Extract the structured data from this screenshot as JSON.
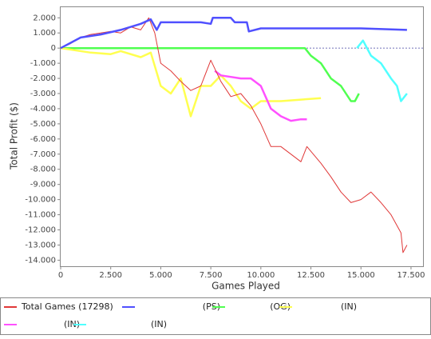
{
  "chart_data": {
    "type": "line",
    "x_label": "Games Played",
    "y_label": "Total Profit ($)",
    "xlim": [
      0,
      18100
    ],
    "ylim": [
      -14400,
      2700
    ],
    "xticks": [
      0,
      {
        "value": 2500,
        "label": "2.500"
      },
      {
        "value": 5000,
        "label": "5.000"
      },
      {
        "value": 7500,
        "label": "7.500"
      },
      {
        "value": 10000,
        "label": "10.000"
      },
      {
        "value": 12500,
        "label": "12.500"
      },
      {
        "value": 15000,
        "label": "15.000"
      },
      {
        "value": 17500,
        "label": "17.500"
      }
    ],
    "yticks": [
      {
        "value": 2000,
        "label": "2.000"
      },
      {
        "value": 1000,
        "label": "1.000"
      },
      0,
      {
        "value": -1000,
        "label": "-1.000"
      },
      {
        "value": -2000,
        "label": "-2.000"
      },
      {
        "value": -3000,
        "label": "-3.000"
      },
      {
        "value": -4000,
        "label": "-4.000"
      },
      {
        "value": -5000,
        "label": "-5.000"
      },
      {
        "value": -6000,
        "label": "-6.000"
      },
      {
        "value": -7000,
        "label": "-7.000"
      },
      {
        "value": -8000,
        "label": "-8.000"
      },
      {
        "value": -9000,
        "label": "-9.000"
      },
      {
        "value": -10000,
        "label": "-10.000"
      },
      {
        "value": -11000,
        "label": "-11.000"
      },
      {
        "value": -12000,
        "label": "-12.000"
      },
      {
        "value": -13000,
        "label": "-13.000"
      },
      {
        "value": -14000,
        "label": "-14.000"
      }
    ],
    "series": [
      {
        "name": "Total Games (17298)",
        "color": "#e03838",
        "x": [
          0,
          500,
          1000,
          1500,
          2000,
          2500,
          3000,
          3500,
          4000,
          4400,
          4700,
          5000,
          5500,
          6000,
          6500,
          7000,
          7500,
          8000,
          8500,
          9000,
          9500,
          10000,
          10500,
          11000,
          11500,
          12000,
          12300,
          13000,
          13500,
          14000,
          14500,
          15000,
          15500,
          16000,
          16500,
          17000,
          17100,
          17300
        ],
        "values": [
          0,
          300,
          700,
          900,
          1000,
          1100,
          1000,
          1400,
          1200,
          2000,
          1000,
          -1000,
          -1500,
          -2200,
          -2800,
          -2500,
          -800,
          -2200,
          -3200,
          -3000,
          -3800,
          -5000,
          -6500,
          -6500,
          -7000,
          -7500,
          -6500,
          -7600,
          -8500,
          -9500,
          -10200,
          -10000,
          -9500,
          -10200,
          -11000,
          -12200,
          -13500,
          -13000
        ]
      },
      {
        "name": "(PS)",
        "color": "#5050ff",
        "x": [
          0,
          1000,
          2000,
          3000,
          4000,
          4500,
          4800,
          5000,
          6000,
          7000,
          7500,
          7600,
          8500,
          8700,
          9300,
          9400,
          10000,
          12000,
          15000,
          17300
        ],
        "values": [
          0,
          700,
          900,
          1200,
          1600,
          1900,
          1200,
          1700,
          1700,
          1700,
          1600,
          2000,
          2000,
          1700,
          1700,
          1100,
          1300,
          1300,
          1300,
          1200
        ]
      },
      {
        "name": "(OG)",
        "color": "#50ff50",
        "x": [
          0,
          12000,
          12200,
          12500,
          13000,
          13500,
          14000,
          14500,
          14700,
          14900
        ],
        "values": [
          0,
          0,
          0,
          -500,
          -1000,
          -2000,
          -2500,
          -3500,
          -3500,
          -3000
        ]
      },
      {
        "name": "(IN)",
        "color": "#ffff50",
        "x": [
          0,
          1500,
          2500,
          3000,
          4000,
          4500,
          5000,
          5500,
          6000,
          6500,
          7000,
          7500,
          8000,
          8500,
          9000,
          9500,
          10000,
          11000,
          12000,
          13000
        ],
        "values": [
          0,
          -300,
          -400,
          -200,
          -600,
          -300,
          -2500,
          -3000,
          -2000,
          -4500,
          -2500,
          -2500,
          -1800,
          -2500,
          -3500,
          -4000,
          -3500,
          -3500,
          -3400,
          -3300
        ]
      },
      {
        "name": "(IN)",
        "color": "#ff50ff",
        "x": [
          7700,
          8000,
          8500,
          9000,
          9500,
          10000,
          10500,
          11000,
          11500,
          12000,
          12300
        ],
        "values": [
          -1500,
          -1800,
          -1900,
          -2000,
          -2000,
          -2500,
          -4000,
          -4500,
          -4800,
          -4700,
          -4700
        ]
      },
      {
        "name": "(IN)",
        "color": "#50ffff",
        "x": [
          14800,
          15100,
          15500,
          16000,
          16500,
          16800,
          17000,
          17300
        ],
        "values": [
          0,
          500,
          -500,
          -1000,
          -2000,
          -2500,
          -3500,
          -3000
        ]
      }
    ]
  }
}
